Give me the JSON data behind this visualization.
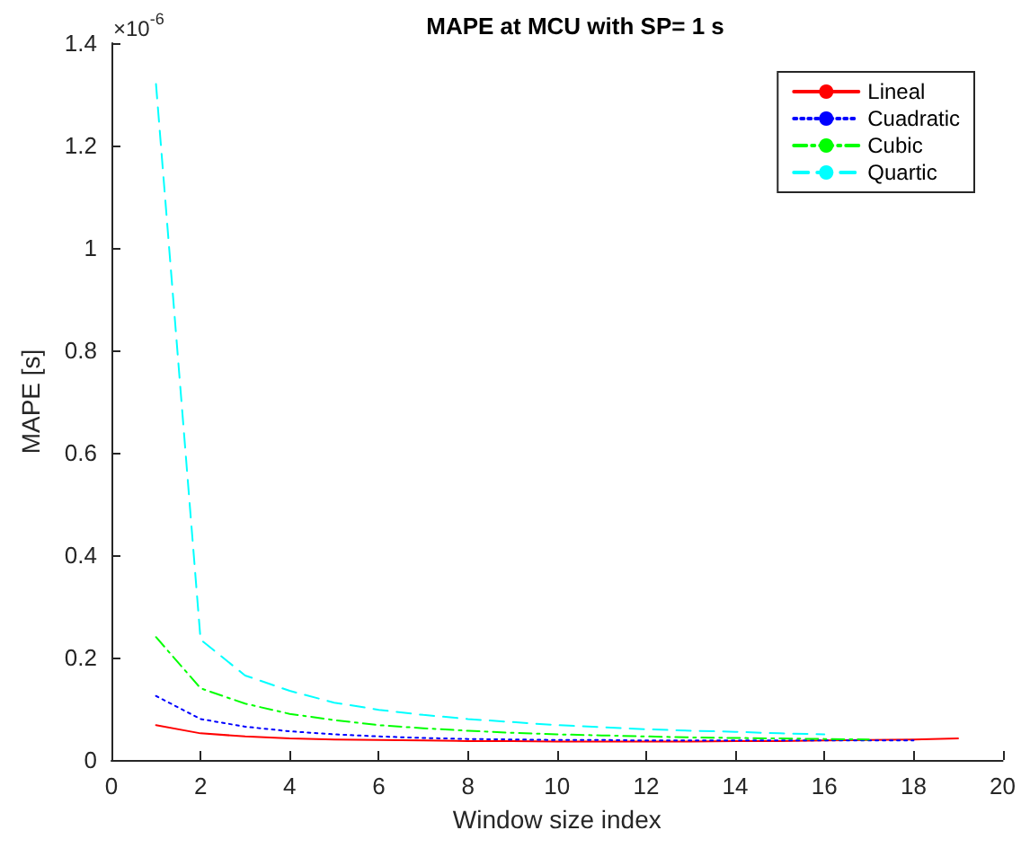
{
  "chart_data": {
    "type": "line",
    "title": "MAPE at MCU with SP= 1 s",
    "xlabel": "Window size index",
    "ylabel": "MAPE [s]",
    "annotations": [
      "×10$^{-6}$"
    ],
    "series": [
      {
        "name": "Lineal",
        "color": "#ff0000",
        "line_style": "solid",
        "x": [
          1,
          2,
          3,
          4,
          5,
          6,
          7,
          8,
          9,
          10,
          11,
          12,
          13,
          14,
          15,
          16,
          17,
          18,
          19
        ],
        "values": [
          0.068,
          0.052,
          0.046,
          0.042,
          0.04,
          0.039,
          0.038,
          0.037,
          0.037,
          0.036,
          0.036,
          0.036,
          0.036,
          0.037,
          0.037,
          0.038,
          0.039,
          0.04,
          0.042
        ]
      },
      {
        "name": "Cuadratic",
        "color": "#0000ff",
        "line_style": "dotted",
        "x": [
          1,
          2,
          3,
          4,
          5,
          6,
          7,
          8,
          9,
          10,
          11,
          12,
          13,
          14,
          15,
          16,
          17,
          18
        ],
        "values": [
          0.125,
          0.08,
          0.065,
          0.056,
          0.05,
          0.046,
          0.043,
          0.041,
          0.04,
          0.039,
          0.039,
          0.038,
          0.038,
          0.038,
          0.038,
          0.038,
          0.038,
          0.038
        ]
      },
      {
        "name": "Cubic",
        "color": "#00ff00",
        "line_style": "dashdot",
        "x": [
          1,
          2,
          3,
          4,
          5,
          6,
          7,
          8,
          9,
          10,
          11,
          12,
          13,
          14,
          15,
          16,
          17
        ],
        "values": [
          0.24,
          0.14,
          0.11,
          0.09,
          0.078,
          0.068,
          0.062,
          0.057,
          0.053,
          0.05,
          0.048,
          0.046,
          0.044,
          0.043,
          0.042,
          0.041,
          0.04
        ]
      },
      {
        "name": "Quartic",
        "color": "#00ffff",
        "line_style": "dashed",
        "x": [
          1,
          2,
          3,
          4,
          5,
          6,
          7,
          8,
          9,
          10,
          11,
          12,
          13,
          14,
          15,
          16
        ],
        "values": [
          1.32,
          0.235,
          0.165,
          0.135,
          0.112,
          0.098,
          0.088,
          0.08,
          0.074,
          0.068,
          0.064,
          0.06,
          0.057,
          0.055,
          0.052,
          0.05
        ]
      }
    ],
    "xlim": [
      0,
      20
    ],
    "xticks": [
      0,
      2,
      4,
      6,
      8,
      10,
      12,
      14,
      16,
      18,
      20
    ],
    "ylim": [
      0,
      1.4
    ],
    "yticks": [
      0,
      0.2,
      0.4,
      0.6,
      0.8,
      1,
      1.2,
      1.4
    ],
    "grid": false,
    "legend": "top right",
    "marker": "none"
  }
}
